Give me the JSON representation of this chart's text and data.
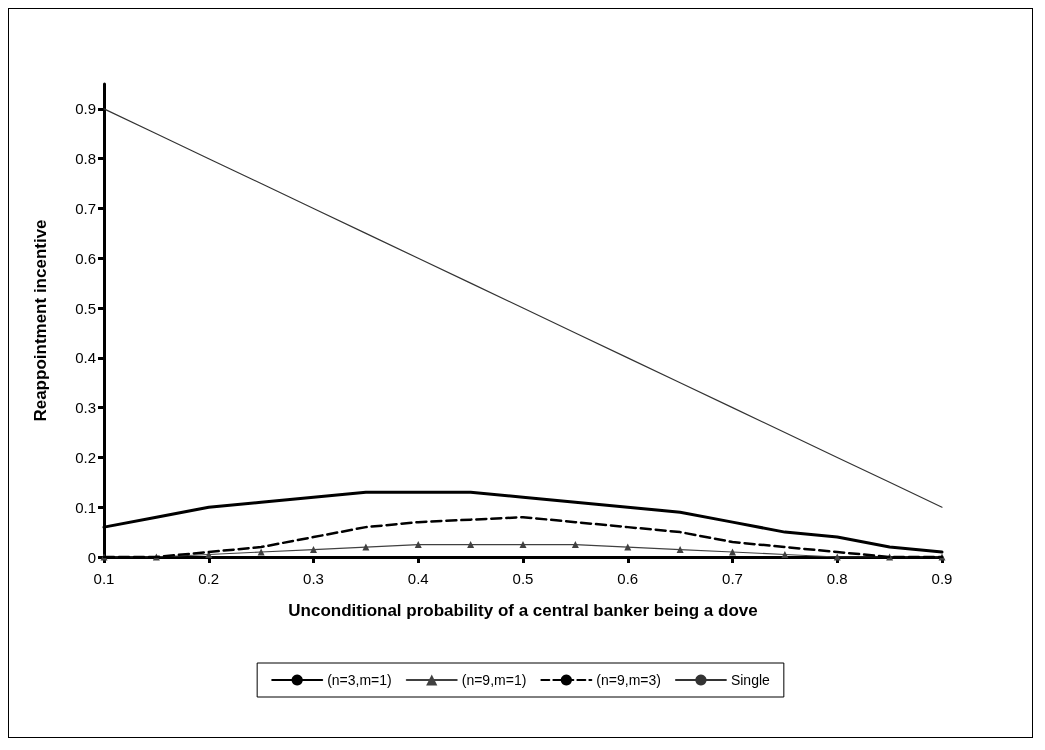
{
  "chart_data": {
    "type": "line",
    "xlabel": "Unconditional probability of a central banker being a dove",
    "ylabel": "Reappointment incentive",
    "xlim": [
      0.1,
      0.9
    ],
    "xticks": [
      0.1,
      0.2,
      0.3,
      0.4,
      0.5,
      0.6,
      0.7,
      0.8,
      0.9
    ],
    "ylim": [
      0,
      0.95
    ],
    "yticks": [
      0,
      0.1,
      0.2,
      0.3,
      0.4,
      0.5,
      0.6,
      0.7,
      0.8,
      0.9
    ],
    "x": [
      0.1,
      0.15,
      0.2,
      0.25,
      0.3,
      0.35,
      0.4,
      0.45,
      0.5,
      0.55,
      0.6,
      0.65,
      0.7,
      0.75,
      0.8,
      0.85,
      0.9
    ],
    "grid": false,
    "legend": "bottom",
    "marker": "none",
    "series": [
      {
        "name": "(n=3,m=1)",
        "color": "#000000",
        "values": [
          0.06,
          0.08,
          0.1,
          0.11,
          0.12,
          0.13,
          0.13,
          0.13,
          0.12,
          0.11,
          0.1,
          0.09,
          0.07,
          0.05,
          0.04,
          0.02,
          0.01
        ]
      },
      {
        "name": "(n=9,m=1)",
        "color": "#404040",
        "marker": "triangle",
        "values": [
          0,
          0,
          0.005,
          0.01,
          0.015,
          0.02,
          0.025,
          0.025,
          0.025,
          0.025,
          0.02,
          0.015,
          0.01,
          0.005,
          0,
          0,
          0
        ]
      },
      {
        "name": "(n=9,m=3)",
        "color": "#000000",
        "line_style": "dashed",
        "values": [
          0,
          0,
          0.01,
          0.02,
          0.04,
          0.06,
          0.07,
          0.075,
          0.08,
          0.07,
          0.06,
          0.05,
          0.03,
          0.02,
          0.01,
          0,
          0
        ]
      },
      {
        "name": "Single",
        "color": "#333333",
        "values": [
          0.9,
          0.85,
          0.8,
          0.75,
          0.7,
          0.65,
          0.6,
          0.55,
          0.5,
          0.45,
          0.4,
          0.35,
          0.3,
          0.25,
          0.2,
          0.15,
          0.1
        ]
      }
    ]
  }
}
